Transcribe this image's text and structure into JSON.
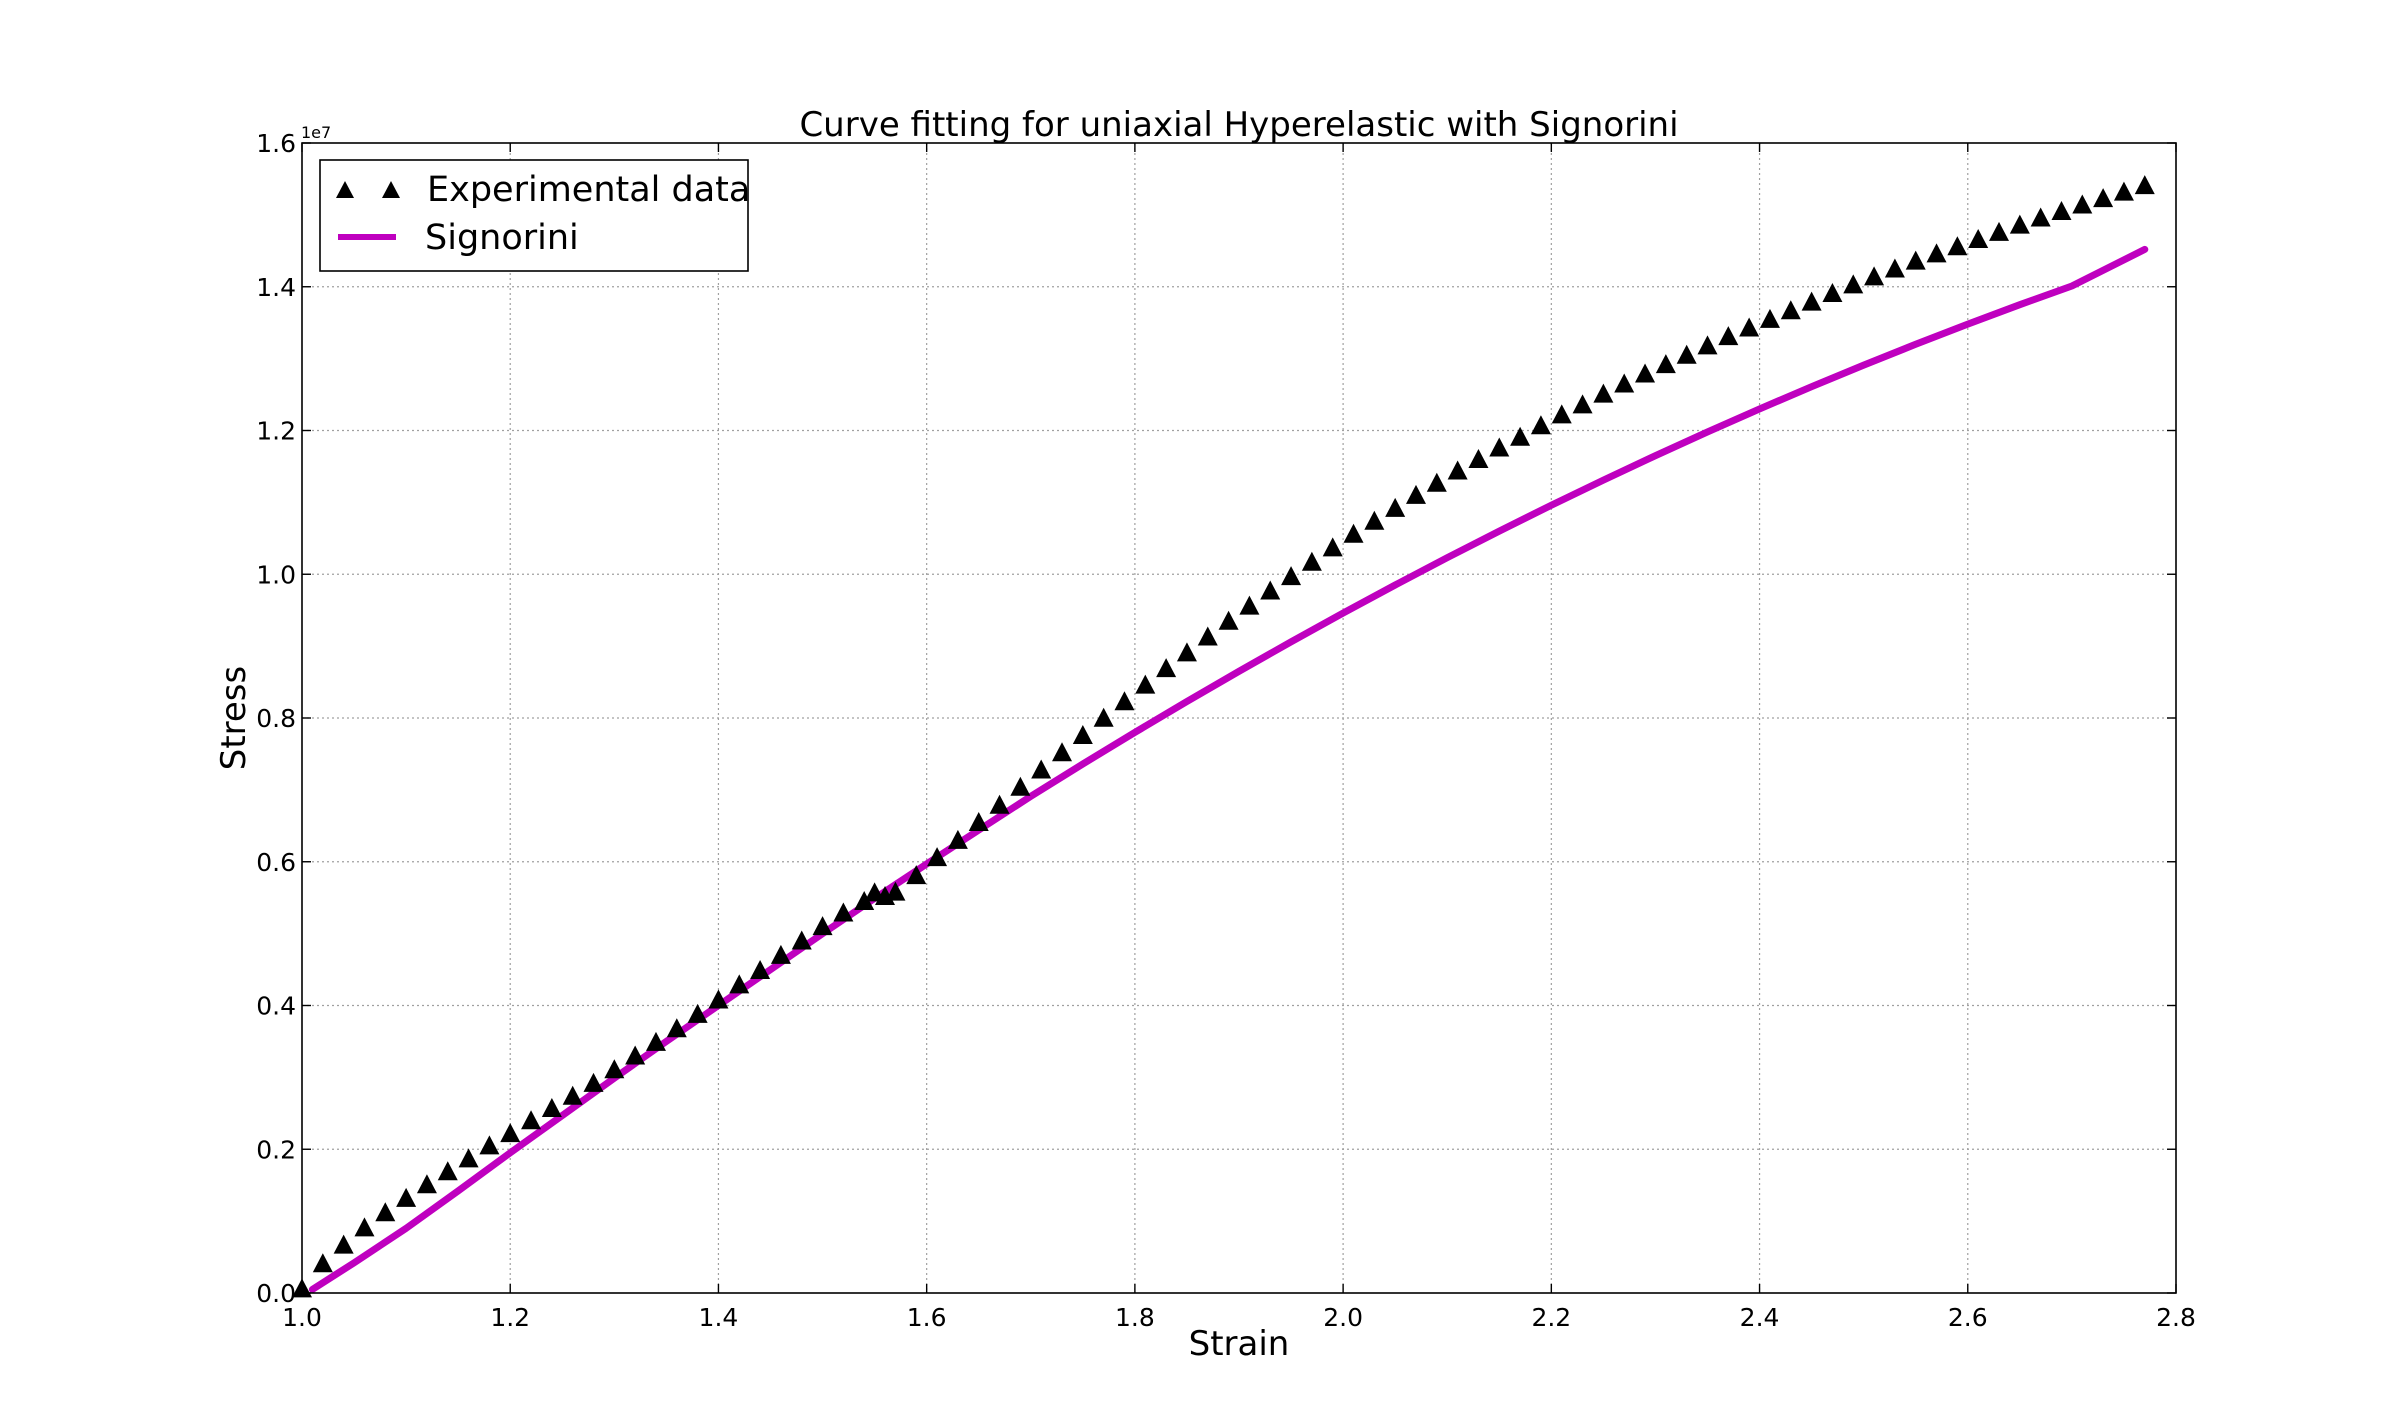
{
  "chart_data": {
    "type": "scatter",
    "title": "Curve fitting for uniaxial Hyperelastic with Signorini",
    "xlabel": "Strain",
    "ylabel": "Stress",
    "xlim": [
      1.0,
      2.8
    ],
    "ylim": [
      0.0,
      16000000.0
    ],
    "y_scale_label": "1e7",
    "x_ticks": [
      "1.0",
      "1.2",
      "1.4",
      "1.6",
      "1.8",
      "2.0",
      "2.2",
      "2.4",
      "2.6",
      "2.8"
    ],
    "x_tick_values": [
      1.0,
      1.2,
      1.4,
      1.6,
      1.8,
      2.0,
      2.2,
      2.4,
      2.6,
      2.8
    ],
    "y_ticks": [
      "0.0",
      "0.2",
      "0.4",
      "0.6",
      "0.8",
      "1.0",
      "1.2",
      "1.4",
      "1.6"
    ],
    "y_tick_values": [
      0,
      2000000,
      4000000,
      6000000,
      8000000,
      10000000,
      12000000,
      14000000,
      16000000
    ],
    "grid": true,
    "legend_position": "top-left",
    "series": [
      {
        "name": "Experimental data",
        "kind": "scatter",
        "marker": "triangle-up",
        "color": "#000000",
        "x": [
          1.0,
          1.02,
          1.04,
          1.06,
          1.08,
          1.1,
          1.12,
          1.14,
          1.16,
          1.18,
          1.2,
          1.22,
          1.24,
          1.26,
          1.28,
          1.3,
          1.32,
          1.34,
          1.36,
          1.38,
          1.4,
          1.42,
          1.44,
          1.46,
          1.48,
          1.5,
          1.52,
          1.54,
          1.55,
          1.56,
          1.57,
          1.59,
          1.61,
          1.63,
          1.65,
          1.67,
          1.69,
          1.71,
          1.73,
          1.75,
          1.77,
          1.79,
          1.81,
          1.83,
          1.85,
          1.87,
          1.89,
          1.91,
          1.93,
          1.95,
          1.97,
          1.99,
          2.01,
          2.03,
          2.05,
          2.07,
          2.09,
          2.11,
          2.13,
          2.15,
          2.17,
          2.19,
          2.21,
          2.23,
          2.25,
          2.27,
          2.29,
          2.31,
          2.33,
          2.35,
          2.37,
          2.39,
          2.41,
          2.43,
          2.45,
          2.47,
          2.49,
          2.51,
          2.53,
          2.55,
          2.57,
          2.59,
          2.61,
          2.63,
          2.65,
          2.67,
          2.69,
          2.71,
          2.73,
          2.75,
          2.77
        ],
        "y": [
          50000,
          400000,
          660000,
          900000,
          1110000,
          1310000,
          1500000,
          1680000,
          1860000,
          2040000,
          2210000,
          2390000,
          2560000,
          2730000,
          2910000,
          3100000,
          3290000,
          3480000,
          3670000,
          3870000,
          4070000,
          4280000,
          4480000,
          4690000,
          4890000,
          5090000,
          5280000,
          5440000,
          5560000,
          5510000,
          5570000,
          5800000,
          6050000,
          6290000,
          6540000,
          6780000,
          7030000,
          7270000,
          7510000,
          7750000,
          7990000,
          8220000,
          8450000,
          8680000,
          8900000,
          9120000,
          9340000,
          9550000,
          9760000,
          9960000,
          10160000,
          10360000,
          10550000,
          10730000,
          10910000,
          11090000,
          11260000,
          11430000,
          11590000,
          11750000,
          11900000,
          12060000,
          12210000,
          12350000,
          12500000,
          12640000,
          12780000,
          12910000,
          13040000,
          13170000,
          13300000,
          13420000,
          13540000,
          13660000,
          13780000,
          13900000,
          14020000,
          14130000,
          14240000,
          14350000,
          14450000,
          14550000,
          14650000,
          14750000,
          14850000,
          14950000,
          15040000,
          15130000,
          15220000,
          15310000,
          15400000
        ]
      },
      {
        "name": "Signorini",
        "kind": "line",
        "color": "#bf00bf",
        "x": [
          1.01,
          1.05,
          1.1,
          1.15,
          1.2,
          1.25,
          1.3,
          1.35,
          1.4,
          1.45,
          1.5,
          1.55,
          1.6,
          1.65,
          1.7,
          1.75,
          1.8,
          1.85,
          1.9,
          1.95,
          2.0,
          2.05,
          2.1,
          2.15,
          2.2,
          2.25,
          2.3,
          2.35,
          2.4,
          2.45,
          2.5,
          2.55,
          2.6,
          2.65,
          2.7,
          2.77
        ],
        "y": [
          50000,
          420000,
          900000,
          1420000,
          1950000,
          2470000,
          2990000,
          3500000,
          4000000,
          4500000,
          5000000,
          5490000,
          5970000,
          6440000,
          6910000,
          7360000,
          7800000,
          8230000,
          8650000,
          9060000,
          9460000,
          9850000,
          10230000,
          10600000,
          10960000,
          11310000,
          11650000,
          11980000,
          12300000,
          12610000,
          12910000,
          13200000,
          13480000,
          13750000,
          14010000,
          14520000
        ]
      }
    ]
  }
}
